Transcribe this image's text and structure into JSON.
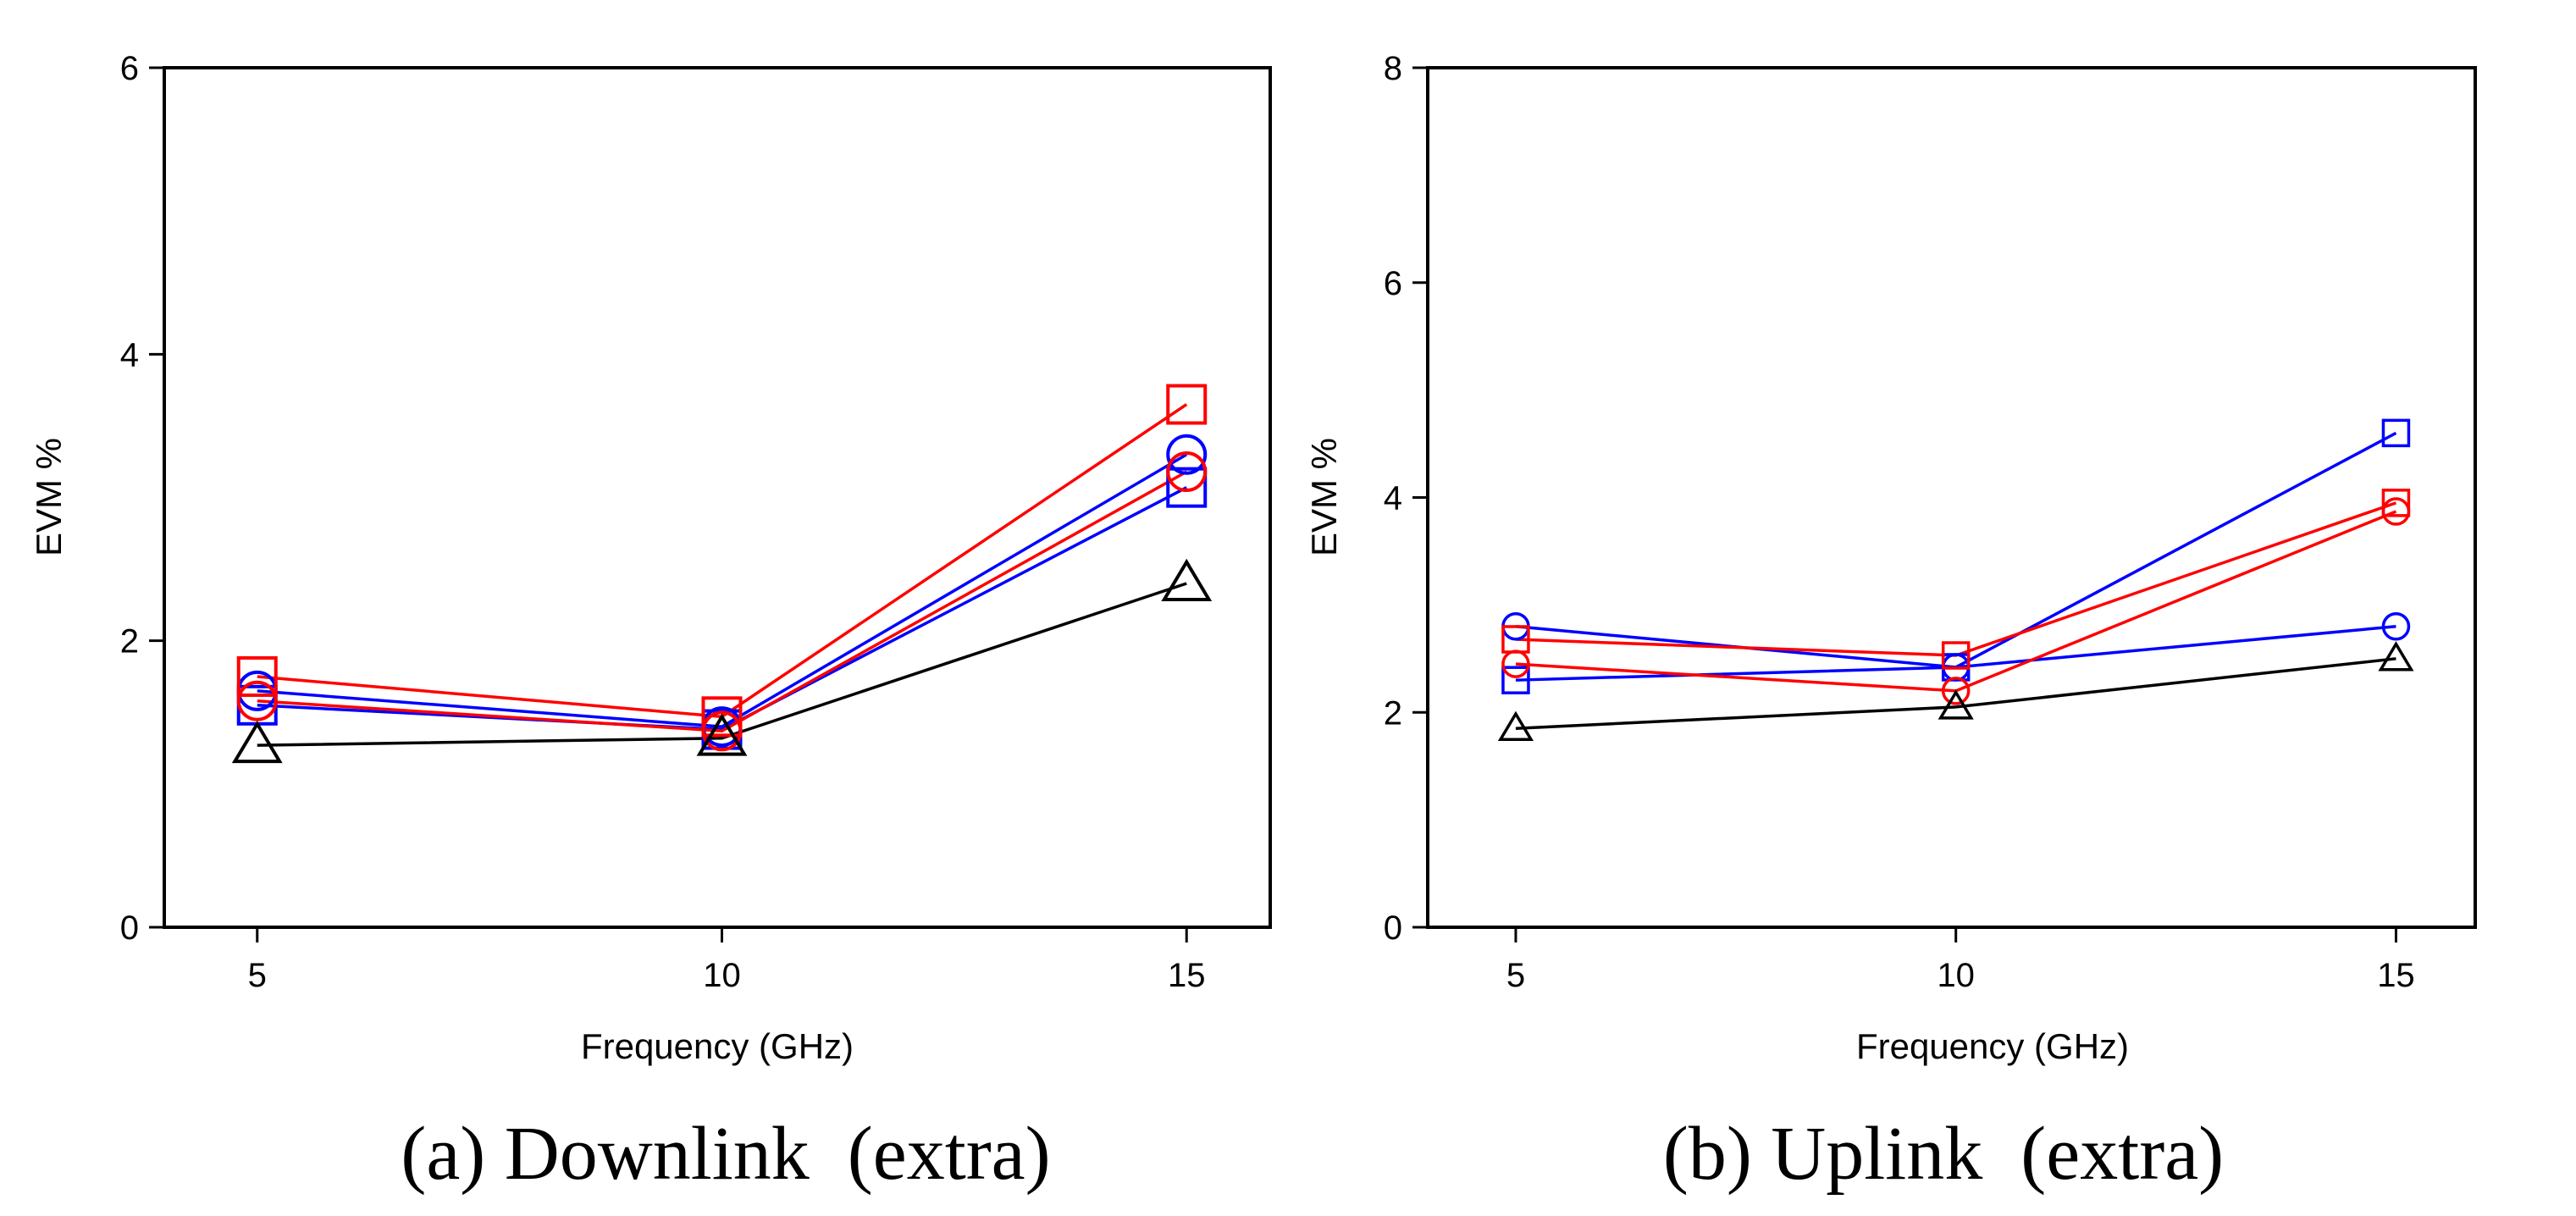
{
  "chart_data": [
    {
      "id": "a",
      "type": "line",
      "title": "",
      "caption": "(a) Downlink  (extra)",
      "xlabel": "Frequency (GHz)",
      "ylabel": "EVM %",
      "x": [
        5,
        10,
        15
      ],
      "xlim": [
        4,
        15.9
      ],
      "ylim": [
        0,
        6
      ],
      "xticks": [
        "5",
        "10",
        "15"
      ],
      "yticks": [
        "0",
        "2",
        "4",
        "6"
      ],
      "series": [
        {
          "name": "blue-square",
          "color": "#0000ff",
          "marker": "square",
          "values": [
            1.55,
            1.38,
            3.07
          ]
        },
        {
          "name": "blue-circle",
          "color": "#0000ff",
          "marker": "circle",
          "values": [
            1.65,
            1.4,
            3.3
          ]
        },
        {
          "name": "red-square",
          "color": "#ff0000",
          "marker": "square",
          "values": [
            1.75,
            1.47,
            3.65
          ]
        },
        {
          "name": "red-circle",
          "color": "#ff0000",
          "marker": "circle",
          "values": [
            1.58,
            1.37,
            3.18
          ]
        },
        {
          "name": "black-triangle",
          "color": "#000000",
          "marker": "triangle",
          "values": [
            1.27,
            1.32,
            2.4
          ]
        }
      ]
    },
    {
      "id": "b",
      "type": "line",
      "title": "",
      "caption": "(b) Uplink  (extra)",
      "xlabel": "Frequency (GHz)",
      "ylabel": "EVM %",
      "x": [
        5,
        10,
        15
      ],
      "xlim": [
        4,
        15.9
      ],
      "ylim": [
        0,
        8
      ],
      "xticks": [
        "5",
        "10",
        "15"
      ],
      "yticks": [
        "0",
        "2",
        "4",
        "6",
        "8"
      ],
      "series": [
        {
          "name": "blue-square",
          "color": "#0000ff",
          "marker": "square",
          "values": [
            2.3,
            2.42,
            4.6
          ]
        },
        {
          "name": "blue-circle",
          "color": "#0000ff",
          "marker": "circle",
          "values": [
            2.8,
            2.42,
            2.8
          ]
        },
        {
          "name": "red-square",
          "color": "#ff0000",
          "marker": "square",
          "values": [
            2.68,
            2.53,
            3.95
          ]
        },
        {
          "name": "red-circle",
          "color": "#ff0000",
          "marker": "circle",
          "values": [
            2.45,
            2.2,
            3.87
          ]
        },
        {
          "name": "black-triangle",
          "color": "#000000",
          "marker": "triangle",
          "values": [
            1.85,
            2.05,
            2.5
          ]
        }
      ]
    }
  ]
}
